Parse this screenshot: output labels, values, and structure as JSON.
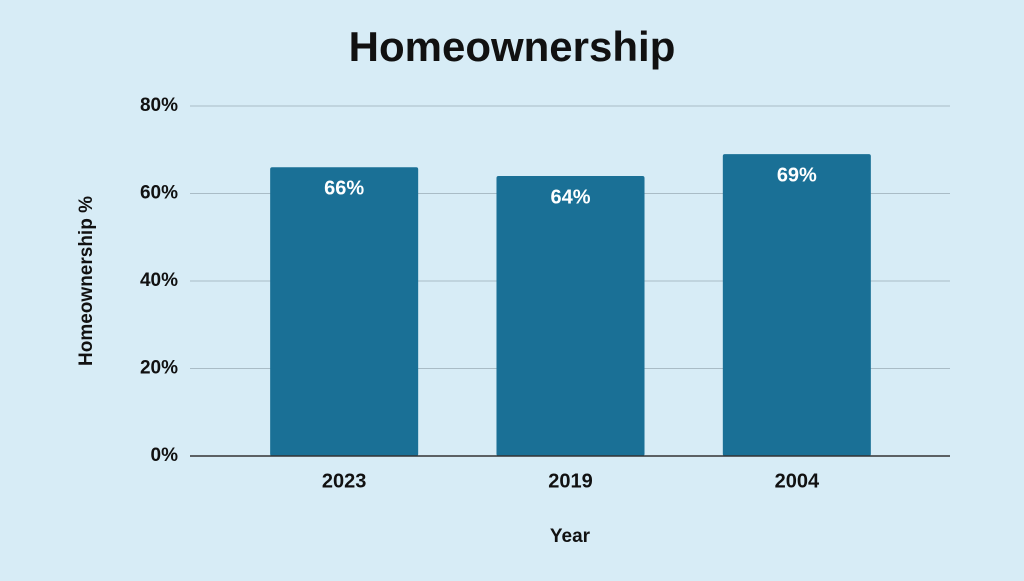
{
  "chart_data": {
    "type": "bar",
    "title": "Homeownership",
    "x_label": "Year",
    "y_label": "Homeownership %",
    "categories": [
      "2023",
      "2019",
      "2004"
    ],
    "values": [
      66,
      64,
      69
    ],
    "value_labels": [
      "66%",
      "64%",
      "69%"
    ],
    "color": "#1a7096",
    "ylim": [
      0,
      80
    ],
    "yticks": [
      {
        "value": 0,
        "label": "0%"
      },
      {
        "value": 20,
        "label": "20%"
      },
      {
        "value": 40,
        "label": "40%"
      },
      {
        "value": 60,
        "label": "60%"
      },
      {
        "value": 80,
        "label": "80%"
      }
    ],
    "grid": true
  }
}
